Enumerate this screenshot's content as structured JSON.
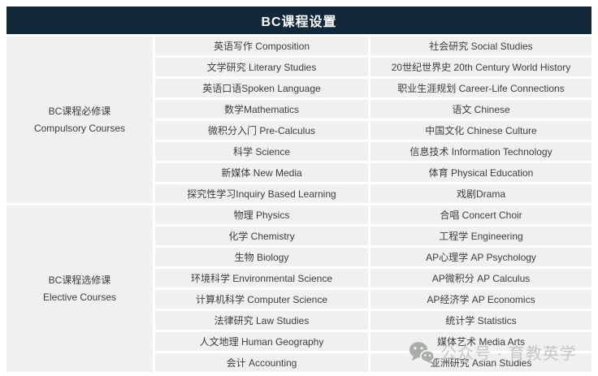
{
  "title": "BC课程设置",
  "colors": {
    "header_bg": "#12293c",
    "header_text": "#ffffff",
    "cell_bg": "#f0f0f0",
    "cell_text": "#3d3d3d",
    "watermark_text": "#c6c6c6",
    "watermark_icon": "#a9aea9"
  },
  "sections": [
    {
      "label_zh": "BC课程必修课",
      "label_en": "Compulsory Courses",
      "col1": [
        "英语写作 Composition",
        "文学研究 Literary Studies",
        "英语口语Spoken Language",
        "数学Mathematics",
        "微积分入门 Pre-Calculus",
        "科学 Science",
        "新媒体 New Media",
        "探究性学习Inquiry Based Learning"
      ],
      "col2": [
        "社会研究 Social Studies",
        "20世纪世界史 20th Century World History",
        "职业生涯规划 Career-Life Connections",
        "语文 Chinese",
        "中国文化 Chinese Culture",
        "信息技术 Information Technology",
        "体育 Physical Education",
        "戏剧Drama"
      ]
    },
    {
      "label_zh": "BC课程选修课",
      "label_en": "Elective Courses",
      "col1": [
        "物理 Physics",
        "化学 Chemistry",
        "生物 Biology",
        "环境科学 Environmental Science",
        "计算机科学 Computer Science",
        "法律研究 Law Studies",
        "人文地理 Human Geography",
        "会计 Accounting"
      ],
      "col2": [
        "合唱 Concert Choir",
        "工程学 Engineering",
        "AP心理学 AP Psychology",
        "AP微积分 AP Calculus",
        "AP经济学 AP Economics",
        "统计学 Statistics",
        "媒体艺术 Media Arts",
        "亚洲研究 Asian Studies"
      ]
    }
  ],
  "watermark": {
    "icon": "wechat-icon",
    "text": "公众号 · 育教英学"
  }
}
